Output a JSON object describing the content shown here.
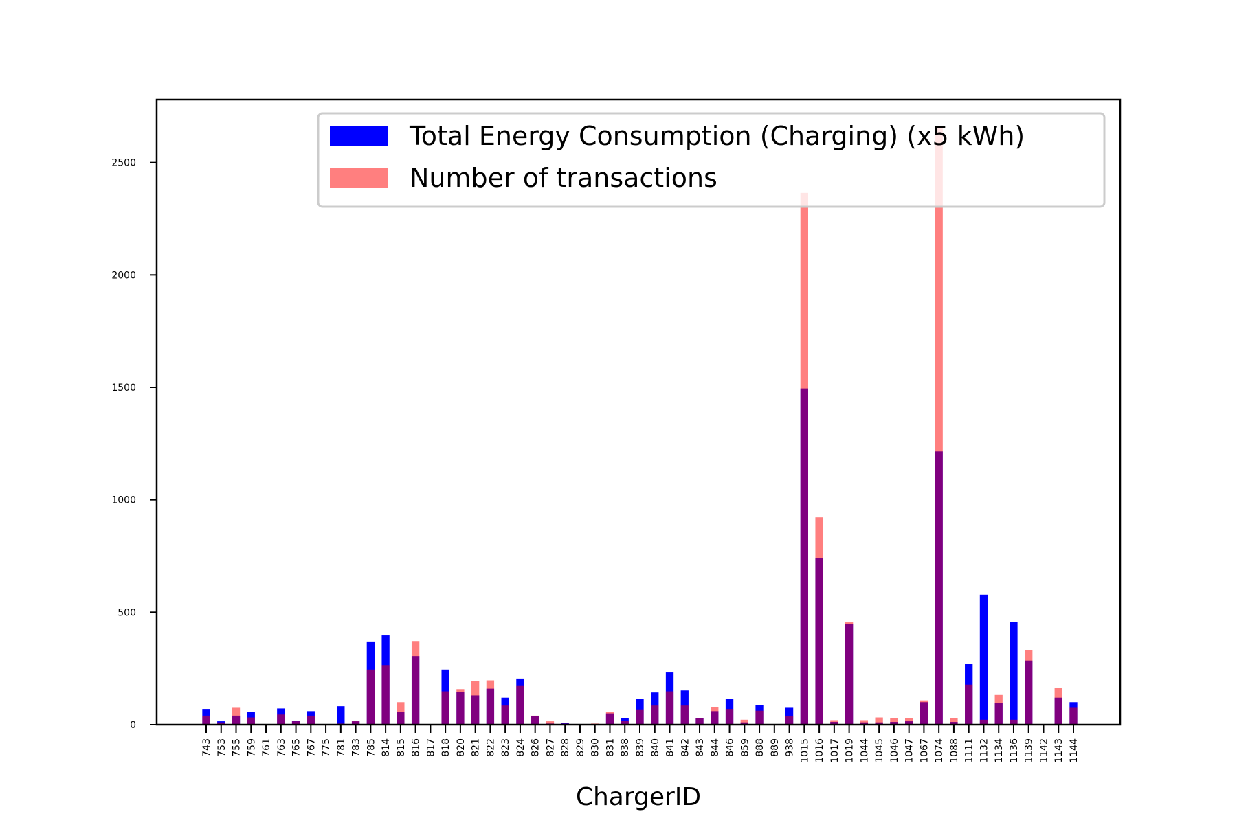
{
  "chart_data": {
    "type": "bar",
    "title": "",
    "xlabel": "ChargerID",
    "ylabel": "",
    "ylim": [
      0,
      2780
    ],
    "yticks": [
      0,
      500,
      1000,
      1500,
      2000,
      2500
    ],
    "grid": false,
    "legend_position": "top-right",
    "categories": [
      "743",
      "753",
      "755",
      "759",
      "761",
      "763",
      "765",
      "767",
      "775",
      "781",
      "783",
      "785",
      "814",
      "815",
      "816",
      "817",
      "818",
      "820",
      "821",
      "822",
      "823",
      "824",
      "826",
      "827",
      "828",
      "829",
      "830",
      "831",
      "838",
      "839",
      "840",
      "841",
      "842",
      "843",
      "844",
      "846",
      "859",
      "888",
      "889",
      "938",
      "1015",
      "1016",
      "1017",
      "1019",
      "1044",
      "1045",
      "1046",
      "1047",
      "1067",
      "1074",
      "1088",
      "1111",
      "1132",
      "1134",
      "1136",
      "1139",
      "1142",
      "1143",
      "1144"
    ],
    "series": [
      {
        "name": "Total Energy Consumption (Charging) (x5 kWh)",
        "color": "#0000ff",
        "opacity": 1.0,
        "values": [
          70,
          15,
          40,
          55,
          0,
          72,
          18,
          60,
          0,
          82,
          15,
          370,
          397,
          55,
          305,
          0,
          245,
          145,
          130,
          160,
          120,
          205,
          38,
          5,
          8,
          0,
          0,
          50,
          28,
          115,
          143,
          232,
          152,
          30,
          60,
          115,
          10,
          88,
          0,
          75,
          1495,
          740,
          12,
          448,
          10,
          10,
          12,
          15,
          100,
          1215,
          12,
          270,
          578,
          95,
          458,
          285,
          0,
          120,
          100
        ]
      },
      {
        "name": "Number of transactions",
        "color": "#ff0000",
        "opacity": 0.5,
        "values": [
          40,
          10,
          75,
          32,
          0,
          45,
          15,
          40,
          0,
          5,
          18,
          245,
          265,
          100,
          372,
          0,
          148,
          158,
          193,
          197,
          85,
          175,
          40,
          15,
          5,
          3,
          5,
          55,
          18,
          68,
          85,
          148,
          85,
          30,
          78,
          70,
          22,
          62,
          0,
          38,
          2365,
          922,
          20,
          455,
          20,
          32,
          30,
          28,
          108,
          2652,
          28,
          178,
          22,
          132,
          22,
          332,
          2,
          165,
          75
        ]
      }
    ]
  }
}
